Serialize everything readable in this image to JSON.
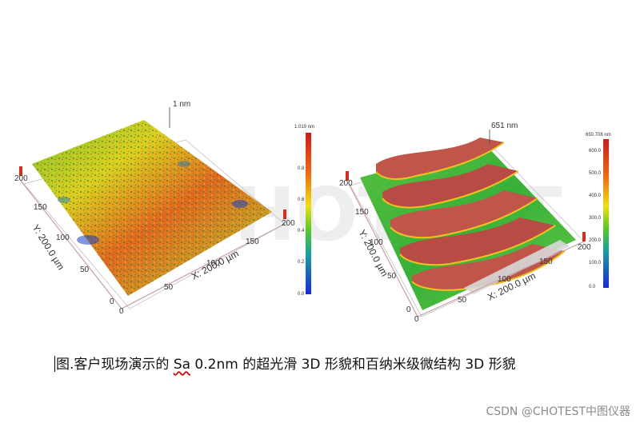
{
  "watermark": "CHOTEST",
  "left_plot": {
    "peak_label": "1 nm",
    "x_axis_label": "X: 200.0 µm",
    "y_axis_label": "Y: 200.0 µm",
    "x_ticks": [
      "0",
      "50",
      "100",
      "150",
      "200"
    ],
    "y_ticks": [
      "0",
      "50",
      "100",
      "150",
      "200"
    ],
    "colorbar_max": "1.019 nm",
    "colorbar_ticks": [
      "0.8",
      "0.6",
      "0.4",
      "0.2",
      "0.0"
    ]
  },
  "right_plot": {
    "peak_label": "651 nm",
    "x_axis_label": "X: 200.0 µm",
    "y_axis_label": "Y: 200.0 µm",
    "x_ticks": [
      "0",
      "50",
      "100",
      "150",
      "200"
    ],
    "y_ticks": [
      "0",
      "50",
      "100",
      "150",
      "200"
    ],
    "colorbar_max": "650.708 nm",
    "colorbar_ticks": [
      "600.0",
      "500.0",
      "400.0",
      "300.0",
      "200.0",
      "100.0",
      "0.0"
    ]
  },
  "caption": {
    "prefix": "图.客户现场演示的 ",
    "sa": "Sa",
    "suffix": " 0.2nm 的超光滑 3D 形貌和百纳米级微结构 3D 形貌"
  },
  "credit": "CSDN @CHOTEST中图仪器"
}
